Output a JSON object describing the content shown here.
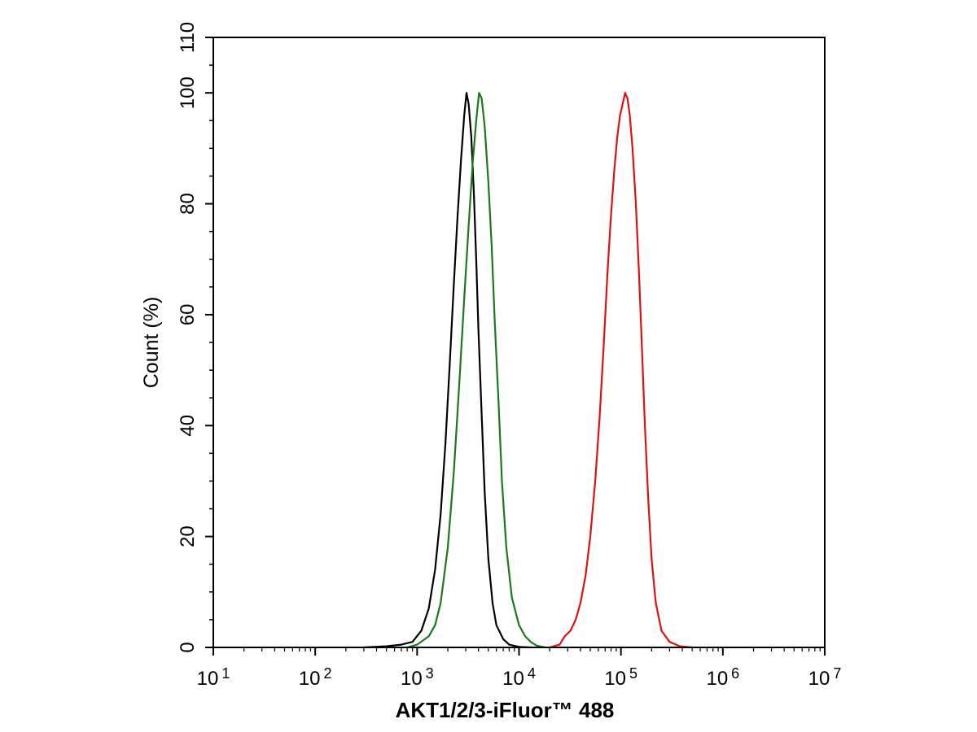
{
  "chart_data": {
    "type": "line",
    "xlabel": "AKT1/2/3-iFluor™ 488",
    "ylabel": "Count  (%)",
    "xscale": "log",
    "xlim": [
      10,
      10000000
    ],
    "ylim": [
      0,
      110
    ],
    "x_ticks": [
      {
        "value": 10,
        "base": "10",
        "exp": "1"
      },
      {
        "value": 100,
        "base": "10",
        "exp": "2"
      },
      {
        "value": 1000,
        "base": "10",
        "exp": "3"
      },
      {
        "value": 10000,
        "base": "10",
        "exp": "4"
      },
      {
        "value": 100000,
        "base": "10",
        "exp": "5"
      },
      {
        "value": 1000000,
        "base": "10",
        "exp": "6"
      },
      {
        "value": 10000000,
        "base": "10",
        "exp": "7"
      }
    ],
    "y_ticks": [
      0,
      20,
      40,
      60,
      80,
      100,
      110
    ],
    "grid": false,
    "series": [
      {
        "color": "#000000",
        "points": [
          [
            300,
            0
          ],
          [
            500,
            0.2
          ],
          [
            700,
            0.5
          ],
          [
            900,
            1
          ],
          [
            1100,
            3
          ],
          [
            1300,
            7
          ],
          [
            1500,
            14
          ],
          [
            1700,
            24
          ],
          [
            1900,
            37
          ],
          [
            2100,
            52
          ],
          [
            2300,
            66
          ],
          [
            2500,
            78
          ],
          [
            2700,
            88
          ],
          [
            2900,
            96
          ],
          [
            3050,
            100
          ],
          [
            3200,
            98
          ],
          [
            3400,
            92
          ],
          [
            3600,
            82
          ],
          [
            3800,
            70
          ],
          [
            4000,
            57
          ],
          [
            4300,
            42
          ],
          [
            4600,
            28
          ],
          [
            5000,
            16
          ],
          [
            5500,
            8
          ],
          [
            6000,
            4
          ],
          [
            7000,
            1.5
          ],
          [
            8000,
            0.5
          ],
          [
            10000,
            0.1
          ],
          [
            13000,
            0
          ]
        ]
      },
      {
        "color": "#1a7a1a",
        "points": [
          [
            800,
            0
          ],
          [
            1000,
            0.5
          ],
          [
            1300,
            2
          ],
          [
            1500,
            4
          ],
          [
            1700,
            8
          ],
          [
            2000,
            18
          ],
          [
            2300,
            32
          ],
          [
            2600,
            48
          ],
          [
            2900,
            63
          ],
          [
            3200,
            76
          ],
          [
            3500,
            87
          ],
          [
            3800,
            95
          ],
          [
            4050,
            100
          ],
          [
            4300,
            99
          ],
          [
            4600,
            94
          ],
          [
            5000,
            84
          ],
          [
            5400,
            72
          ],
          [
            5800,
            58
          ],
          [
            6300,
            44
          ],
          [
            6800,
            30
          ],
          [
            7500,
            18
          ],
          [
            8500,
            9
          ],
          [
            10000,
            4
          ],
          [
            11500,
            2
          ],
          [
            13000,
            1
          ],
          [
            15000,
            0.3
          ],
          [
            18000,
            0
          ]
        ]
      },
      {
        "color": "#e01010",
        "points": [
          [
            20000,
            0
          ],
          [
            25000,
            0.5
          ],
          [
            28000,
            2
          ],
          [
            32000,
            3
          ],
          [
            36000,
            5
          ],
          [
            40000,
            8
          ],
          [
            45000,
            13
          ],
          [
            50000,
            20
          ],
          [
            56000,
            30
          ],
          [
            62000,
            42
          ],
          [
            68000,
            55
          ],
          [
            74000,
            68
          ],
          [
            80000,
            78
          ],
          [
            86000,
            86
          ],
          [
            92000,
            92
          ],
          [
            98000,
            96
          ],
          [
            104000,
            98
          ],
          [
            110000,
            100
          ],
          [
            116000,
            99
          ],
          [
            122000,
            96
          ],
          [
            130000,
            90
          ],
          [
            140000,
            80
          ],
          [
            150000,
            68
          ],
          [
            160000,
            55
          ],
          [
            172000,
            40
          ],
          [
            185000,
            27
          ],
          [
            200000,
            16
          ],
          [
            220000,
            8
          ],
          [
            250000,
            3
          ],
          [
            300000,
            1
          ],
          [
            380000,
            0.2
          ],
          [
            500000,
            0
          ]
        ]
      }
    ]
  }
}
